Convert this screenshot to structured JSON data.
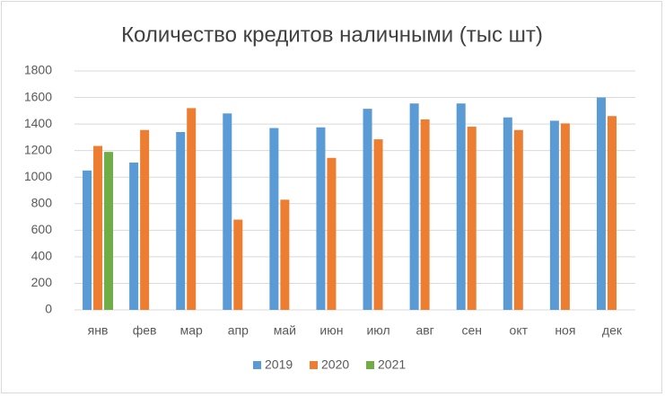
{
  "chart_data": {
    "type": "bar",
    "title": "Количество кредитов наличными (тыс шт)",
    "categories": [
      "янв",
      "фев",
      "мар",
      "апр",
      "май",
      "июн",
      "июл",
      "авг",
      "сен",
      "окт",
      "ноя",
      "дек"
    ],
    "series": [
      {
        "name": "2019",
        "color": "#5b9bd5",
        "values": [
          1050,
          1110,
          1340,
          1480,
          1370,
          1375,
          1515,
          1555,
          1555,
          1450,
          1425,
          1600
        ]
      },
      {
        "name": "2020",
        "color": "#ed7d31",
        "values": [
          1235,
          1355,
          1520,
          680,
          830,
          1145,
          1285,
          1435,
          1380,
          1355,
          1405,
          1460
        ]
      },
      {
        "name": "2021",
        "color": "#70ad47",
        "values": [
          1190,
          null,
          null,
          null,
          null,
          null,
          null,
          null,
          null,
          null,
          null,
          null
        ]
      }
    ],
    "ylim": [
      0,
      1800
    ],
    "yticks": [
      0,
      200,
      400,
      600,
      800,
      1000,
      1200,
      1400,
      1600,
      1800
    ],
    "grid": true,
    "legend": "bottom"
  }
}
